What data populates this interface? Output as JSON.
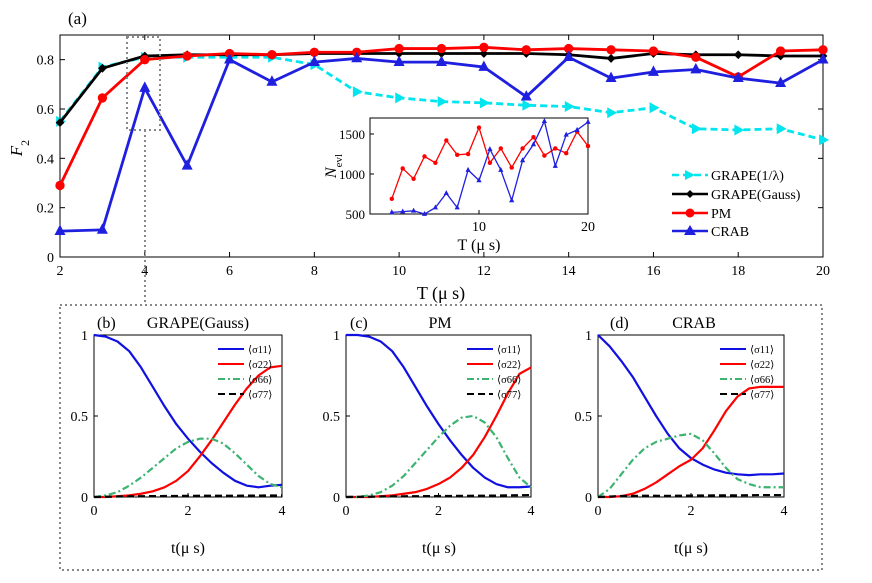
{
  "panel_a": {
    "label": "(a)",
    "xlabel": "T (μ s)",
    "ylabel_main": "F",
    "ylabel_sub": "2",
    "x_ticks": [
      2,
      4,
      6,
      8,
      10,
      12,
      14,
      16,
      18,
      20
    ],
    "y_ticks": [
      0,
      0.2,
      0.4,
      0.6,
      0.8
    ],
    "y_tick_labels": [
      "0",
      "0.2",
      "0.4",
      "0.6",
      "0.8"
    ]
  },
  "inset": {
    "ylabel_main": "N",
    "ylabel_sub": "evl",
    "xlabel": "T (μ s)",
    "x_ticks": [
      10,
      20
    ],
    "y_ticks": [
      500,
      1000,
      1500
    ]
  },
  "panel_b": {
    "label": "(b)",
    "title": "GRAPE(Gauss)"
  },
  "panel_c": {
    "label": "(c)",
    "title": "PM"
  },
  "panel_d": {
    "label": "(d)",
    "title": "CRAB"
  },
  "sub_axes": {
    "xlabel": "t(μ s)",
    "x_ticks": [
      0,
      2,
      4
    ],
    "y_ticks": [
      0,
      0.5,
      1
    ],
    "legend": [
      "⟨σ11⟩",
      "⟨σ22⟩",
      "⟨σ66⟩",
      "⟨σ77⟩"
    ]
  },
  "colors": {
    "grape_lambda": "#00E5EE",
    "grape_gauss": "#000000",
    "pm": "#FF0000",
    "crab": "#1F1FE0",
    "sigma11": "#1010E0",
    "sigma22": "#FF0000",
    "sigma66": "#3CB371",
    "sigma77": "#000000"
  },
  "chart_data": [
    {
      "type": "line",
      "id": "fidelity_vs_T",
      "xlabel": "T (μ s)",
      "ylabel": "F2",
      "xlim": [
        2,
        20
      ],
      "ylim": [
        0,
        0.9
      ],
      "legend_position": "right",
      "series": [
        {
          "name": "GRAPE(1/λ)",
          "color_key": "grape_lambda",
          "style": "dashed",
          "marker": "tri-right",
          "x": [
            2,
            3,
            4,
            5,
            6,
            7,
            8,
            9,
            10,
            11,
            12,
            13,
            14,
            15,
            16,
            17,
            18,
            19,
            20
          ],
          "y": [
            0.55,
            0.77,
            0.81,
            0.81,
            0.81,
            0.81,
            0.78,
            0.67,
            0.645,
            0.63,
            0.625,
            0.615,
            0.61,
            0.585,
            0.605,
            0.52,
            0.515,
            0.52,
            0.475
          ]
        },
        {
          "name": "GRAPE(Gauss)",
          "color_key": "grape_gauss",
          "style": "solid",
          "marker": "diamond",
          "x": [
            2,
            3,
            4,
            5,
            6,
            7,
            8,
            9,
            10,
            11,
            12,
            13,
            14,
            15,
            16,
            17,
            18,
            19,
            20
          ],
          "y": [
            0.545,
            0.765,
            0.815,
            0.82,
            0.82,
            0.82,
            0.825,
            0.825,
            0.825,
            0.825,
            0.825,
            0.825,
            0.82,
            0.805,
            0.825,
            0.82,
            0.82,
            0.815,
            0.815
          ]
        },
        {
          "name": "PM",
          "color_key": "pm",
          "style": "solid",
          "marker": "circle",
          "x": [
            2,
            3,
            4,
            5,
            6,
            7,
            8,
            9,
            10,
            11,
            12,
            13,
            14,
            15,
            16,
            17,
            18,
            19,
            20
          ],
          "y": [
            0.29,
            0.645,
            0.8,
            0.815,
            0.825,
            0.82,
            0.83,
            0.83,
            0.845,
            0.845,
            0.85,
            0.84,
            0.845,
            0.84,
            0.835,
            0.81,
            0.73,
            0.835,
            0.84
          ]
        },
        {
          "name": "CRAB",
          "color_key": "crab",
          "style": "solid",
          "marker": "triangle",
          "x": [
            2,
            3,
            4,
            5,
            6,
            7,
            8,
            9,
            10,
            11,
            12,
            13,
            14,
            15,
            16,
            17,
            18,
            19,
            20
          ],
          "y": [
            0.105,
            0.11,
            0.685,
            0.37,
            0.8,
            0.71,
            0.79,
            0.805,
            0.79,
            0.79,
            0.77,
            0.65,
            0.81,
            0.725,
            0.75,
            0.76,
            0.725,
            0.705,
            0.8
          ]
        }
      ]
    },
    {
      "type": "line",
      "id": "inset_Nevl",
      "xlabel": "T (μ s)",
      "ylabel": "Nevl",
      "xlim": [
        0,
        20
      ],
      "ylim": [
        500,
        1700
      ],
      "series": [
        {
          "name": "PM",
          "color_key": "pm",
          "marker": "circle",
          "x": [
            2,
            3,
            4,
            5,
            6,
            7,
            8,
            9,
            10,
            11,
            12,
            13,
            14,
            15,
            16,
            17,
            18,
            19,
            20
          ],
          "y": [
            690,
            1070,
            940,
            1220,
            1140,
            1420,
            1240,
            1250,
            1580,
            1140,
            1320,
            1080,
            1320,
            1460,
            1230,
            1320,
            1260,
            1530,
            1350
          ]
        },
        {
          "name": "CRAB",
          "color_key": "crab",
          "marker": "triangle",
          "x": [
            2,
            3,
            4,
            5,
            6,
            7,
            8,
            9,
            10,
            11,
            12,
            13,
            14,
            15,
            16,
            17,
            18,
            19,
            20
          ],
          "y": [
            520,
            530,
            540,
            500,
            580,
            760,
            580,
            1050,
            920,
            1310,
            1050,
            670,
            1170,
            1370,
            1660,
            1100,
            1490,
            1550,
            1650
          ]
        }
      ]
    },
    {
      "type": "line",
      "id": "populations_grape_gauss",
      "xlabel": "t(μ s)",
      "xlim": [
        0,
        4
      ],
      "ylim": [
        0,
        1
      ],
      "series": [
        {
          "name": "⟨σ11⟩",
          "color_key": "sigma11",
          "style": "solid",
          "x": [
            0,
            0.25,
            0.5,
            0.75,
            1,
            1.25,
            1.5,
            1.75,
            2,
            2.25,
            2.5,
            2.75,
            3,
            3.25,
            3.5,
            3.75,
            4
          ],
          "y": [
            1,
            0.99,
            0.96,
            0.9,
            0.8,
            0.68,
            0.56,
            0.45,
            0.36,
            0.28,
            0.21,
            0.15,
            0.1,
            0.07,
            0.06,
            0.07,
            0.075
          ]
        },
        {
          "name": "⟨σ22⟩",
          "color_key": "sigma22",
          "style": "solid",
          "x": [
            0,
            0.25,
            0.5,
            0.75,
            1,
            1.25,
            1.5,
            1.75,
            2,
            2.25,
            2.5,
            2.75,
            3,
            3.25,
            3.5,
            3.75,
            4
          ],
          "y": [
            0,
            0,
            0.005,
            0.01,
            0.02,
            0.035,
            0.06,
            0.1,
            0.16,
            0.25,
            0.35,
            0.46,
            0.57,
            0.67,
            0.75,
            0.8,
            0.81
          ]
        },
        {
          "name": "⟨σ66⟩",
          "color_key": "sigma66",
          "style": "dashdot",
          "x": [
            0,
            0.25,
            0.5,
            0.75,
            1,
            1.25,
            1.5,
            1.75,
            2,
            2.25,
            2.5,
            2.75,
            3,
            3.25,
            3.5,
            3.75,
            4
          ],
          "y": [
            0,
            0.01,
            0.03,
            0.07,
            0.12,
            0.18,
            0.24,
            0.3,
            0.34,
            0.36,
            0.36,
            0.33,
            0.27,
            0.2,
            0.13,
            0.08,
            0.06
          ]
        },
        {
          "name": "⟨σ77⟩",
          "color_key": "sigma77",
          "style": "dashed",
          "x": [
            0,
            0.5,
            1,
            1.5,
            2,
            2.5,
            3,
            3.5,
            4
          ],
          "y": [
            0,
            0.003,
            0.005,
            0.006,
            0.007,
            0.008,
            0.008,
            0.009,
            0.01
          ]
        }
      ]
    },
    {
      "type": "line",
      "id": "populations_pm",
      "xlabel": "t(μ s)",
      "xlim": [
        0,
        4
      ],
      "ylim": [
        0,
        1
      ],
      "series": [
        {
          "name": "⟨σ11⟩",
          "color_key": "sigma11",
          "style": "solid",
          "x": [
            0,
            0.25,
            0.5,
            0.75,
            1,
            1.25,
            1.5,
            1.75,
            2,
            2.25,
            2.5,
            2.75,
            3,
            3.25,
            3.5,
            3.75,
            4
          ],
          "y": [
            1,
            1,
            0.99,
            0.96,
            0.9,
            0.8,
            0.68,
            0.56,
            0.45,
            0.35,
            0.26,
            0.18,
            0.12,
            0.08,
            0.06,
            0.06,
            0.065
          ]
        },
        {
          "name": "⟨σ22⟩",
          "color_key": "sigma22",
          "style": "solid",
          "x": [
            0,
            0.25,
            0.5,
            0.75,
            1,
            1.25,
            1.5,
            1.75,
            2,
            2.25,
            2.5,
            2.75,
            3,
            3.25,
            3.5,
            3.75,
            4
          ],
          "y": [
            0,
            0,
            0,
            0.005,
            0.01,
            0.02,
            0.03,
            0.05,
            0.08,
            0.12,
            0.18,
            0.26,
            0.37,
            0.5,
            0.64,
            0.76,
            0.8
          ]
        },
        {
          "name": "⟨σ66⟩",
          "color_key": "sigma66",
          "style": "dashdot",
          "x": [
            0,
            0.25,
            0.5,
            0.75,
            1,
            1.25,
            1.5,
            1.75,
            2,
            2.25,
            2.5,
            2.75,
            3,
            3.25,
            3.5,
            3.75,
            4
          ],
          "y": [
            0,
            0,
            0.01,
            0.03,
            0.07,
            0.13,
            0.21,
            0.29,
            0.37,
            0.44,
            0.49,
            0.5,
            0.46,
            0.37,
            0.24,
            0.12,
            0.06
          ]
        },
        {
          "name": "⟨σ77⟩",
          "color_key": "sigma77",
          "style": "dashed",
          "x": [
            0,
            0.5,
            1,
            1.5,
            2,
            2.5,
            3,
            3.5,
            4
          ],
          "y": [
            0,
            0.002,
            0.004,
            0.005,
            0.006,
            0.007,
            0.008,
            0.01,
            0.012
          ]
        }
      ]
    },
    {
      "type": "line",
      "id": "populations_crab",
      "xlabel": "t(μ s)",
      "xlim": [
        0,
        4
      ],
      "ylim": [
        0,
        1
      ],
      "series": [
        {
          "name": "⟨σ11⟩",
          "color_key": "sigma11",
          "style": "solid",
          "x": [
            0,
            0.25,
            0.5,
            0.75,
            1,
            1.25,
            1.5,
            1.75,
            2,
            2.25,
            2.5,
            2.75,
            3,
            3.25,
            3.5,
            3.75,
            4
          ],
          "y": [
            1,
            0.93,
            0.84,
            0.74,
            0.62,
            0.5,
            0.39,
            0.3,
            0.24,
            0.2,
            0.17,
            0.15,
            0.14,
            0.135,
            0.14,
            0.14,
            0.145
          ]
        },
        {
          "name": "⟨σ22⟩",
          "color_key": "sigma22",
          "style": "solid",
          "x": [
            0,
            0.25,
            0.5,
            0.75,
            1,
            1.25,
            1.5,
            1.75,
            2,
            2.25,
            2.5,
            2.75,
            3,
            3.25,
            3.5,
            3.75,
            4
          ],
          "y": [
            0,
            0,
            0.005,
            0.02,
            0.05,
            0.09,
            0.14,
            0.19,
            0.23,
            0.3,
            0.41,
            0.53,
            0.62,
            0.67,
            0.68,
            0.68,
            0.68
          ]
        },
        {
          "name": "⟨σ66⟩",
          "color_key": "sigma66",
          "style": "dashdot",
          "x": [
            0,
            0.25,
            0.5,
            0.75,
            1,
            1.25,
            1.5,
            1.75,
            2,
            2.25,
            2.5,
            2.75,
            3,
            3.25,
            3.5,
            3.75,
            4
          ],
          "y": [
            0,
            0.05,
            0.14,
            0.23,
            0.3,
            0.34,
            0.36,
            0.38,
            0.39,
            0.35,
            0.27,
            0.18,
            0.11,
            0.08,
            0.06,
            0.06,
            0.06
          ]
        },
        {
          "name": "⟨σ77⟩",
          "color_key": "sigma77",
          "style": "dashed",
          "x": [
            0,
            0.5,
            1,
            1.5,
            2,
            2.5,
            3,
            3.5,
            4
          ],
          "y": [
            0,
            0.006,
            0.008,
            0.007,
            0.009,
            0.01,
            0.01,
            0.012,
            0.012
          ]
        }
      ]
    }
  ]
}
